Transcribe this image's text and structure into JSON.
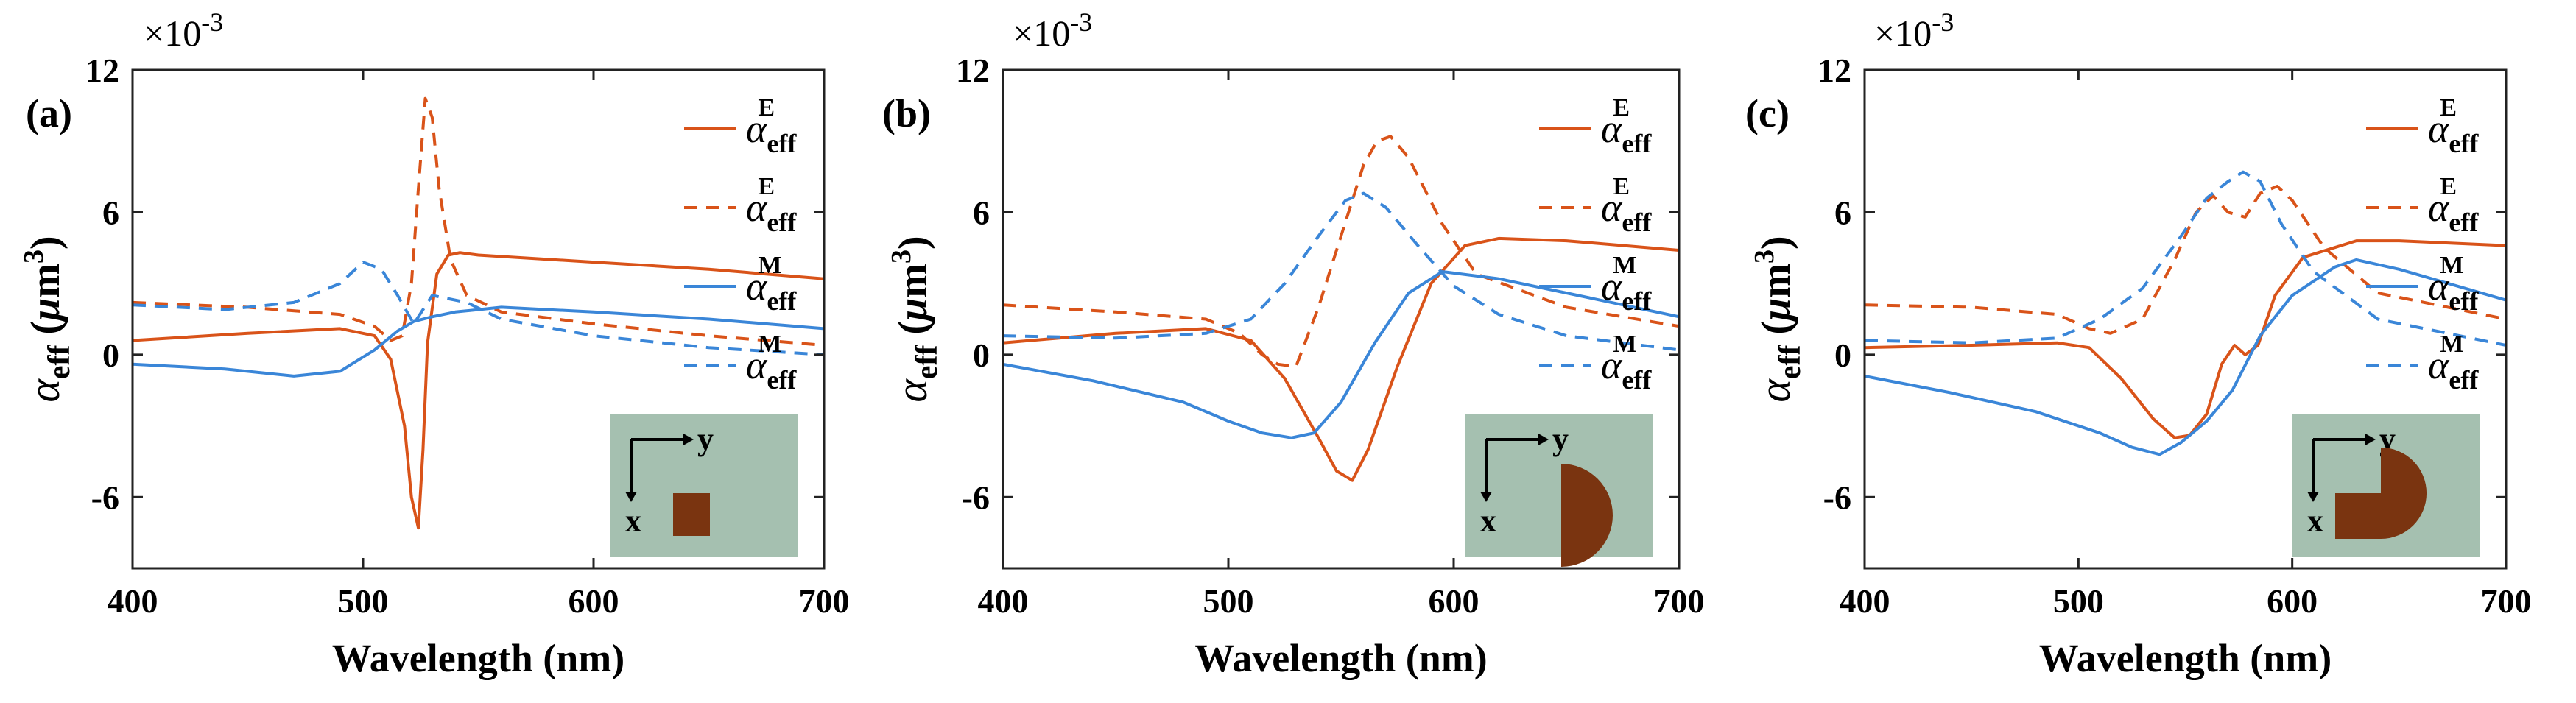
{
  "colors": {
    "electric": "#d95319",
    "magnetic": "#3a86d8",
    "inset_bg": "#a5c0b0",
    "particle": "#7a3410"
  },
  "common": {
    "xlabel": "Wavelength (nm)",
    "ylabel_symbol": "α",
    "ylabel_sub": "eff",
    "ylabel_units_pre": " (",
    "ylabel_units_mu": "μ",
    "ylabel_units_m": "m",
    "ylabel_units_exp": "3",
    "ylabel_units_post": ")",
    "scale_base": "×10",
    "scale_exp": "-3",
    "x_ticks": [
      "400",
      "500",
      "600",
      "700"
    ],
    "y_ticks": [
      "-6",
      "0",
      "6",
      "12"
    ],
    "legend": [
      {
        "symbol": "α",
        "sub": "eff",
        "sup": "E",
        "style": "solid",
        "color": "electric"
      },
      {
        "symbol": "α",
        "sub": "eff",
        "sup": "E",
        "style": "dashed",
        "color": "electric"
      },
      {
        "symbol": "α",
        "sub": "eff",
        "sup": "M",
        "style": "solid",
        "color": "magnetic"
      },
      {
        "symbol": "α",
        "sub": "eff",
        "sup": "M",
        "style": "dashed",
        "color": "magnetic"
      }
    ],
    "inset_axes": {
      "x": "x",
      "y": "y"
    }
  },
  "chart_data": [
    {
      "type": "line",
      "panel": "(a)",
      "particle_shape": "square",
      "xlim": [
        400,
        700
      ],
      "ylim": [
        -9,
        12
      ],
      "xlabel": "Wavelength (nm)",
      "ylabel": "α_eff (μm^3)",
      "y_scale": "×10^-3",
      "series": [
        {
          "name": "α_eff^E",
          "style": "solid",
          "color": "electric",
          "x": [
            400,
            450,
            490,
            505,
            512,
            518,
            521,
            524,
            526,
            528,
            532,
            537,
            542,
            550,
            600,
            650,
            700
          ],
          "y": [
            0.6,
            0.9,
            1.1,
            0.8,
            -0.2,
            -3,
            -6,
            -7.3,
            -4,
            0.5,
            3.4,
            4.2,
            4.3,
            4.2,
            3.9,
            3.6,
            3.2
          ]
        },
        {
          "name": "α_eff^E",
          "style": "dashed",
          "color": "electric",
          "x": [
            400,
            450,
            490,
            505,
            512,
            517,
            521,
            524,
            527,
            530,
            533,
            538,
            545,
            560,
            600,
            650,
            700
          ],
          "y": [
            2.2,
            2.0,
            1.7,
            1.2,
            0.6,
            0.8,
            3,
            7,
            10.8,
            10,
            7,
            4,
            2.5,
            1.8,
            1.3,
            0.8,
            0.4
          ]
        },
        {
          "name": "α_eff^M",
          "style": "solid",
          "color": "magnetic",
          "x": [
            400,
            440,
            470,
            490,
            505,
            515,
            522,
            530,
            540,
            560,
            600,
            650,
            700
          ],
          "y": [
            -0.4,
            -0.6,
            -0.9,
            -0.7,
            0.2,
            1.0,
            1.4,
            1.6,
            1.8,
            2.0,
            1.8,
            1.5,
            1.1
          ]
        },
        {
          "name": "α_eff^M",
          "style": "dashed",
          "color": "magnetic",
          "x": [
            400,
            440,
            470,
            490,
            500,
            508,
            515,
            522,
            530,
            545,
            560,
            600,
            650,
            700
          ],
          "y": [
            2.1,
            1.9,
            2.2,
            3.0,
            3.9,
            3.6,
            2.5,
            1.3,
            2.5,
            2.2,
            1.5,
            0.8,
            0.3,
            0
          ]
        }
      ]
    },
    {
      "type": "line",
      "panel": "(b)",
      "particle_shape": "half-disk",
      "xlim": [
        400,
        700
      ],
      "ylim": [
        -9,
        12
      ],
      "xlabel": "Wavelength (nm)",
      "ylabel": "α_eff (μm^3)",
      "y_scale": "×10^-3",
      "series": [
        {
          "name": "α_eff^E",
          "style": "solid",
          "color": "electric",
          "x": [
            400,
            450,
            490,
            510,
            525,
            540,
            548,
            555,
            562,
            575,
            590,
            605,
            620,
            650,
            700
          ],
          "y": [
            0.5,
            0.9,
            1.1,
            0.6,
            -1,
            -3.5,
            -4.9,
            -5.3,
            -4,
            -0.5,
            3,
            4.6,
            4.9,
            4.8,
            4.4
          ]
        },
        {
          "name": "α_eff^E",
          "style": "dashed",
          "color": "electric",
          "x": [
            400,
            450,
            490,
            505,
            515,
            522,
            530,
            540,
            550,
            560,
            566,
            572,
            580,
            595,
            610,
            650,
            700
          ],
          "y": [
            2.1,
            1.8,
            1.5,
            0.9,
            0,
            -0.4,
            -0.5,
            2,
            5,
            8,
            9,
            9.2,
            8.3,
            5.5,
            3.4,
            2,
            1.2
          ]
        },
        {
          "name": "α_eff^M",
          "style": "solid",
          "color": "magnetic",
          "x": [
            400,
            440,
            480,
            500,
            515,
            528,
            538,
            550,
            565,
            580,
            595,
            620,
            650,
            700
          ],
          "y": [
            -0.4,
            -1.1,
            -2,
            -2.8,
            -3.3,
            -3.5,
            -3.3,
            -2,
            0.5,
            2.6,
            3.5,
            3.2,
            2.6,
            1.6
          ]
        },
        {
          "name": "α_eff^M",
          "style": "dashed",
          "color": "magnetic",
          "x": [
            400,
            450,
            490,
            510,
            525,
            540,
            552,
            560,
            570,
            585,
            600,
            620,
            650,
            700
          ],
          "y": [
            0.8,
            0.7,
            0.9,
            1.5,
            3,
            5,
            6.5,
            6.8,
            6.2,
            4.5,
            2.9,
            1.7,
            0.8,
            0.2
          ]
        }
      ]
    },
    {
      "type": "line",
      "panel": "(c)",
      "particle_shape": "three-quarter-disk",
      "xlim": [
        400,
        700
      ],
      "ylim": [
        -9,
        12
      ],
      "xlabel": "Wavelength (nm)",
      "ylabel": "α_eff (μm^3)",
      "y_scale": "×10^-3",
      "series": [
        {
          "name": "α_eff^E",
          "style": "solid",
          "color": "electric",
          "x": [
            400,
            450,
            490,
            505,
            520,
            535,
            545,
            552,
            560,
            567,
            573,
            578,
            584,
            592,
            605,
            630,
            650,
            700
          ],
          "y": [
            0.3,
            0.4,
            0.5,
            0.3,
            -1,
            -2.7,
            -3.5,
            -3.4,
            -2.5,
            -0.4,
            0.4,
            0,
            0.4,
            2.5,
            4.1,
            4.8,
            4.8,
            4.6
          ]
        },
        {
          "name": "α_eff^E",
          "style": "dashed",
          "color": "electric",
          "x": [
            400,
            450,
            490,
            505,
            515,
            530,
            545,
            555,
            563,
            570,
            578,
            585,
            593,
            600,
            615,
            640,
            700
          ],
          "y": [
            2.1,
            2,
            1.7,
            1.1,
            0.9,
            1.5,
            4,
            6,
            6.7,
            6,
            5.8,
            6.8,
            7.1,
            6.5,
            4.5,
            2.6,
            1.5
          ]
        },
        {
          "name": "α_eff^M",
          "style": "solid",
          "color": "magnetic",
          "x": [
            400,
            440,
            480,
            510,
            525,
            538,
            548,
            560,
            572,
            585,
            600,
            620,
            630,
            650,
            700
          ],
          "y": [
            -0.9,
            -1.6,
            -2.4,
            -3.3,
            -3.9,
            -4.2,
            -3.7,
            -2.8,
            -1.5,
            0.8,
            2.5,
            3.7,
            4,
            3.6,
            2.3
          ]
        },
        {
          "name": "α_eff^M",
          "style": "dashed",
          "color": "magnetic",
          "x": [
            400,
            450,
            490,
            510,
            530,
            548,
            560,
            570,
            577,
            585,
            595,
            610,
            640,
            700
          ],
          "y": [
            0.6,
            0.5,
            0.7,
            1.5,
            2.8,
            5,
            6.6,
            7.3,
            7.7,
            7.3,
            5.5,
            3.5,
            1.5,
            0.4
          ]
        }
      ]
    }
  ]
}
